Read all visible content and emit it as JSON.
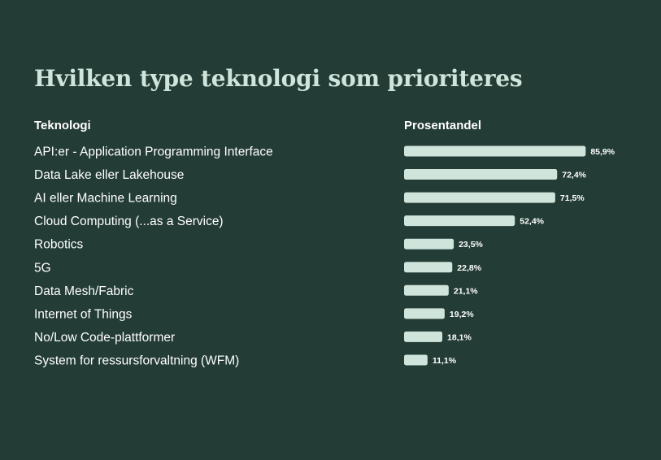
{
  "title": "Hvilken type teknologi som prioriteres",
  "columns": {
    "category": "Teknologi",
    "value": "Prosentandel"
  },
  "colors": {
    "background": "#233c35",
    "bar": "#cfe4da",
    "title": "#cfe4da",
    "text": "#ffffff"
  },
  "chart_data": {
    "type": "bar",
    "orientation": "horizontal",
    "categories": [
      "API:er - Application Programming Interface",
      "Data Lake eller Lakehouse",
      "AI eller Machine Learning",
      "Cloud Computing (...as a Service)",
      "Robotics",
      "5G",
      "Data Mesh/Fabric",
      "Internet of Things",
      "No/Low Code-plattformer",
      "System for ressursforvaltning (WFM)"
    ],
    "values": [
      85.9,
      72.4,
      71.5,
      52.4,
      23.5,
      22.8,
      21.1,
      19.2,
      18.1,
      11.1
    ],
    "value_labels": [
      "85,9%",
      "72,4%",
      "71,5%",
      "52,4%",
      "23,5%",
      "22,8%",
      "21,1%",
      "19,2%",
      "18,1%",
      "11,1%"
    ],
    "title": "Hvilken type teknologi som prioriteres",
    "xlabel": "Prosentandel",
    "ylabel": "Teknologi",
    "xlim": [
      0,
      100
    ],
    "grid": false,
    "legend": "none"
  }
}
